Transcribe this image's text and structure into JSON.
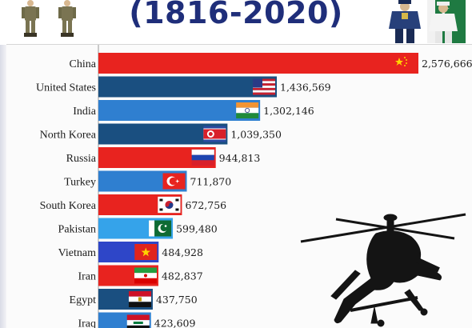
{
  "header": {
    "title": "(1816-2020)"
  },
  "colors": {
    "title": "#1f2e7a",
    "red": "#e8231f",
    "navy": "#1a4f80",
    "blue": "#2f7fd0",
    "sky": "#35a3ea",
    "royal": "#2e46c8"
  },
  "decor": {
    "left_image": "soldiers-icon",
    "right_image": "uniformed-officers-icon",
    "bottom_image": "attack-helicopter-silhouette-icon"
  },
  "chart_data": {
    "type": "bar",
    "orientation": "horizontal",
    "title": "(1816-2020)",
    "xlabel": "",
    "ylabel": "",
    "xlim": [
      0,
      2576666
    ],
    "grid": false,
    "legend": "none",
    "categories": [
      "China",
      "United States",
      "India",
      "North Korea",
      "Russia",
      "Turkey",
      "South Korea",
      "Pakistan",
      "Vietnam",
      "Iran",
      "Egypt",
      "Iraq"
    ],
    "values": [
      2576666,
      1436569,
      1302146,
      1039350,
      944813,
      711870,
      672756,
      599480,
      484928,
      482837,
      437750,
      423609
    ],
    "value_labels": [
      "2,576,666",
      "1,436,569",
      "1,302,146",
      "1,039,350",
      "944,813",
      "711,870",
      "672,756",
      "599,480",
      "484,928",
      "482,837",
      "437,750",
      "423,609"
    ],
    "bar_colors": [
      "#e8231f",
      "#1a4f80",
      "#2f7fd0",
      "#1a4f80",
      "#e8231f",
      "#2f7fd0",
      "#e8231f",
      "#35a3ea",
      "#2e46c8",
      "#e8231f",
      "#1a4f80",
      "#2f7fd0"
    ],
    "flags": [
      "china-flag-icon",
      "usa-flag-icon",
      "india-flag-icon",
      "north-korea-flag-icon",
      "russia-flag-icon",
      "turkey-flag-icon",
      "south-korea-flag-icon",
      "pakistan-flag-icon",
      "vietnam-flag-icon",
      "iran-flag-icon",
      "egypt-flag-icon",
      "iraq-flag-icon"
    ]
  }
}
